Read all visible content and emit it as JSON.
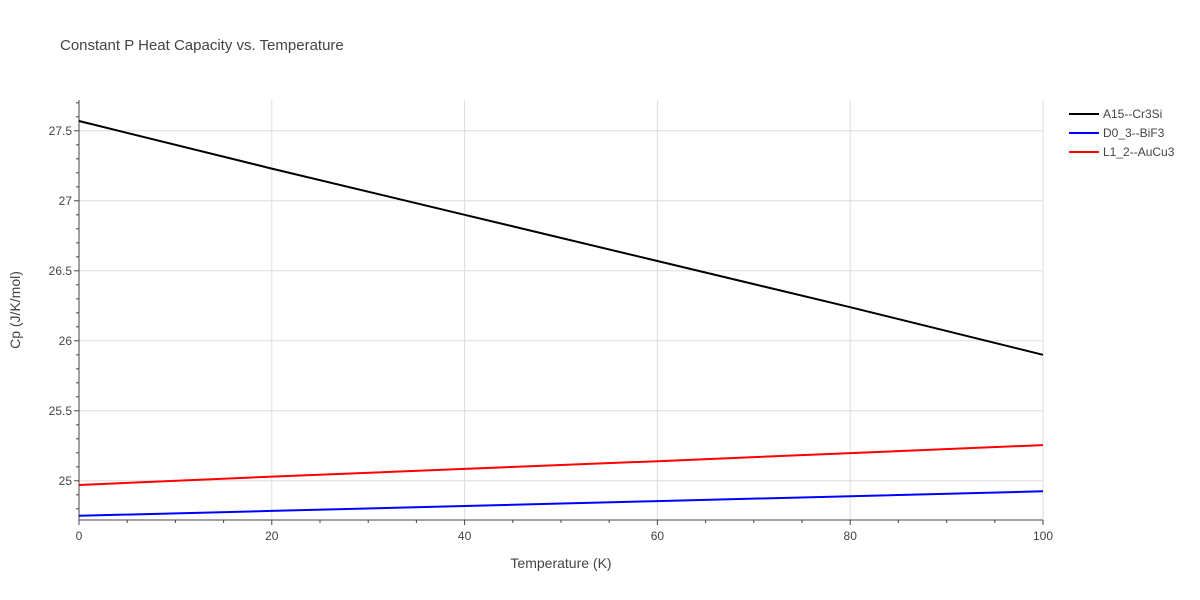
{
  "chart_data": {
    "type": "line",
    "title": "Constant P Heat Capacity vs. Temperature",
    "xlabel": "Temperature (K)",
    "ylabel": "Cp (J/K/mol)",
    "xlim": [
      0,
      100
    ],
    "ylim": [
      24.72,
      27.72
    ],
    "x_ticks": [
      0,
      20,
      40,
      60,
      80,
      100
    ],
    "x_tick_labels": [
      "0",
      "20",
      "40",
      "60",
      "80",
      "100"
    ],
    "y_ticks": [
      25,
      25.5,
      26,
      26.5,
      27,
      27.5
    ],
    "y_tick_labels": [
      "25",
      "25.5",
      "26",
      "26.5",
      "27",
      "27.5"
    ],
    "grid": true,
    "legend_position": "top-right",
    "series": [
      {
        "name": "A15--Cr3Si",
        "color": "#000000",
        "x": [
          0,
          20,
          40,
          60,
          80,
          100
        ],
        "y": [
          27.57,
          27.23,
          26.9,
          26.57,
          26.24,
          25.9
        ]
      },
      {
        "name": "D0_3--BiF3",
        "color": "#0000ff",
        "x": [
          0,
          20,
          40,
          60,
          80,
          100
        ],
        "y": [
          24.75,
          24.785,
          24.82,
          24.855,
          24.89,
          24.925
        ]
      },
      {
        "name": "L1_2--AuCu3",
        "color": "#ff0000",
        "x": [
          0,
          20,
          40,
          60,
          80,
          100
        ],
        "y": [
          24.97,
          25.03,
          25.085,
          25.14,
          25.198,
          25.255
        ]
      }
    ]
  }
}
